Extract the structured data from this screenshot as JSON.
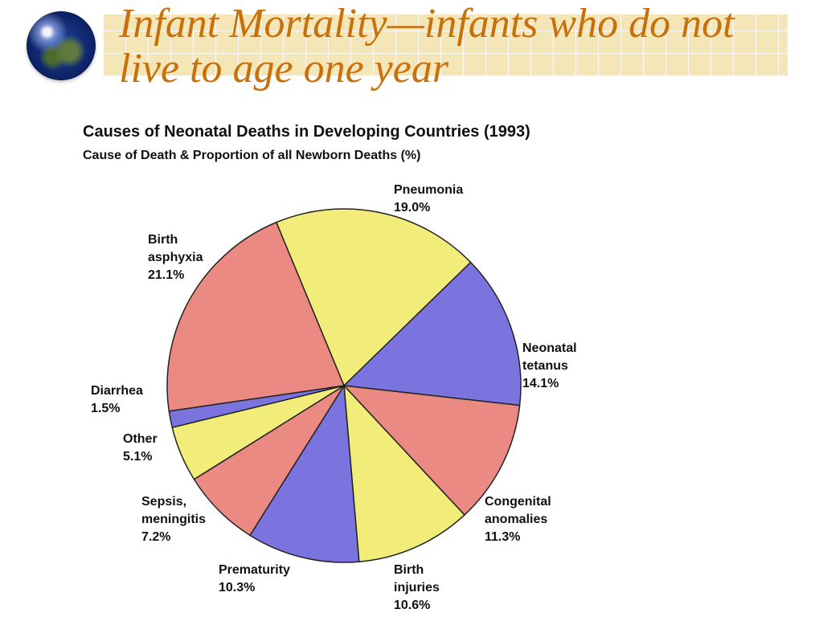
{
  "slide": {
    "title": "Infant Mortality—infants who do not live to age one year"
  },
  "chart_data": {
    "type": "pie",
    "title": "Causes of Neonatal Deaths in Developing Countries (1993)",
    "subtitle": "Cause of Death & Proportion of all Newborn Deaths (%)",
    "slices": [
      {
        "name_lines": [
          "Pneumonia"
        ],
        "value": 19.0,
        "value_label": "19.0%",
        "color": "#f2ec7a"
      },
      {
        "name_lines": [
          "Neonatal",
          "tetanus"
        ],
        "value": 14.1,
        "value_label": "14.1%",
        "color": "#7b74df"
      },
      {
        "name_lines": [
          "Congenital",
          "anomalies"
        ],
        "value": 11.3,
        "value_label": "11.3%",
        "color": "#ea8a82"
      },
      {
        "name_lines": [
          "Birth",
          "injuries"
        ],
        "value": 10.6,
        "value_label": "10.6%",
        "color": "#f2ec7a"
      },
      {
        "name_lines": [
          "Prematurity"
        ],
        "value": 10.3,
        "value_label": "10.3%",
        "color": "#7b74df"
      },
      {
        "name_lines": [
          "Sepsis,",
          "meningitis"
        ],
        "value": 7.2,
        "value_label": "7.2%",
        "color": "#ea8a82"
      },
      {
        "name_lines": [
          "Other"
        ],
        "value": 5.1,
        "value_label": "5.1%",
        "color": "#f2ec7a"
      },
      {
        "name_lines": [
          "Diarrhea"
        ],
        "value": 1.5,
        "value_label": "1.5%",
        "color": "#7b74df"
      },
      {
        "name_lines": [
          "Birth",
          "asphyxia"
        ],
        "value": 21.1,
        "value_label": "21.1%",
        "color": "#ea8a82"
      }
    ],
    "start_slice": "Pneumonia"
  }
}
